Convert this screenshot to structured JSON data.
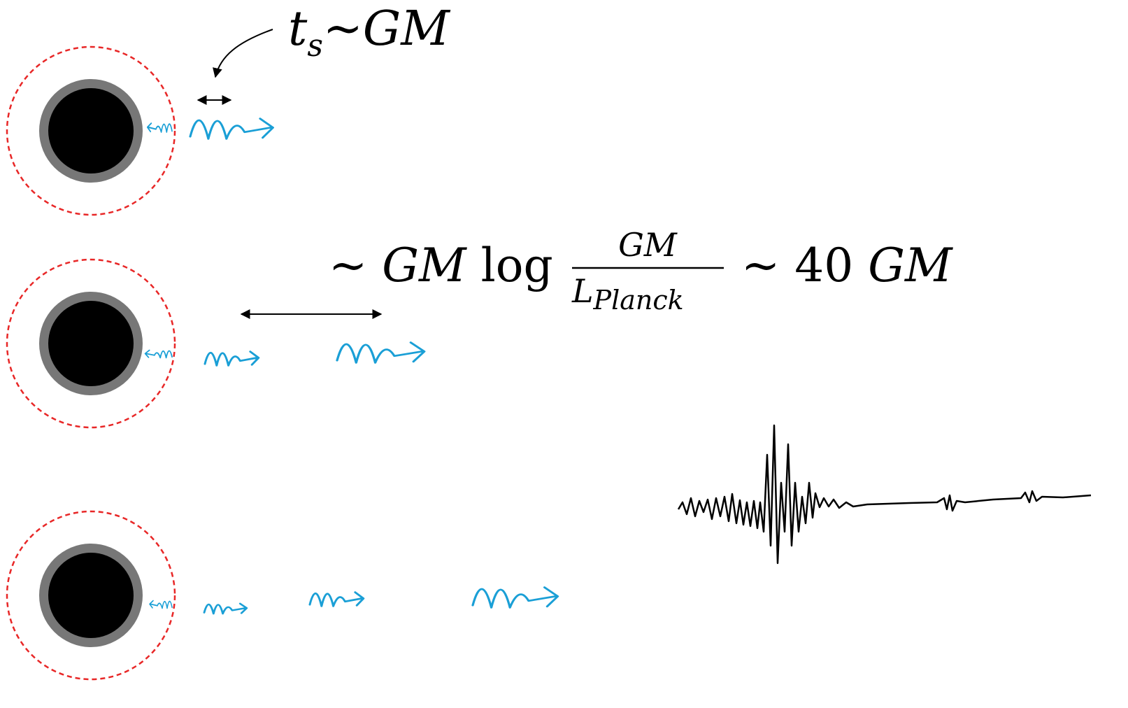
{
  "labels": {
    "echo_time": {
      "symbol": "t",
      "subscript": "s",
      "relation": "~GM"
    },
    "delay": {
      "prefix": "~",
      "mass": "GM",
      "log": "log",
      "numerator": "GM",
      "denominator": "L",
      "denominator_subscript": "Planck",
      "relation": "~ 40",
      "result_mass": "GM"
    }
  }
}
